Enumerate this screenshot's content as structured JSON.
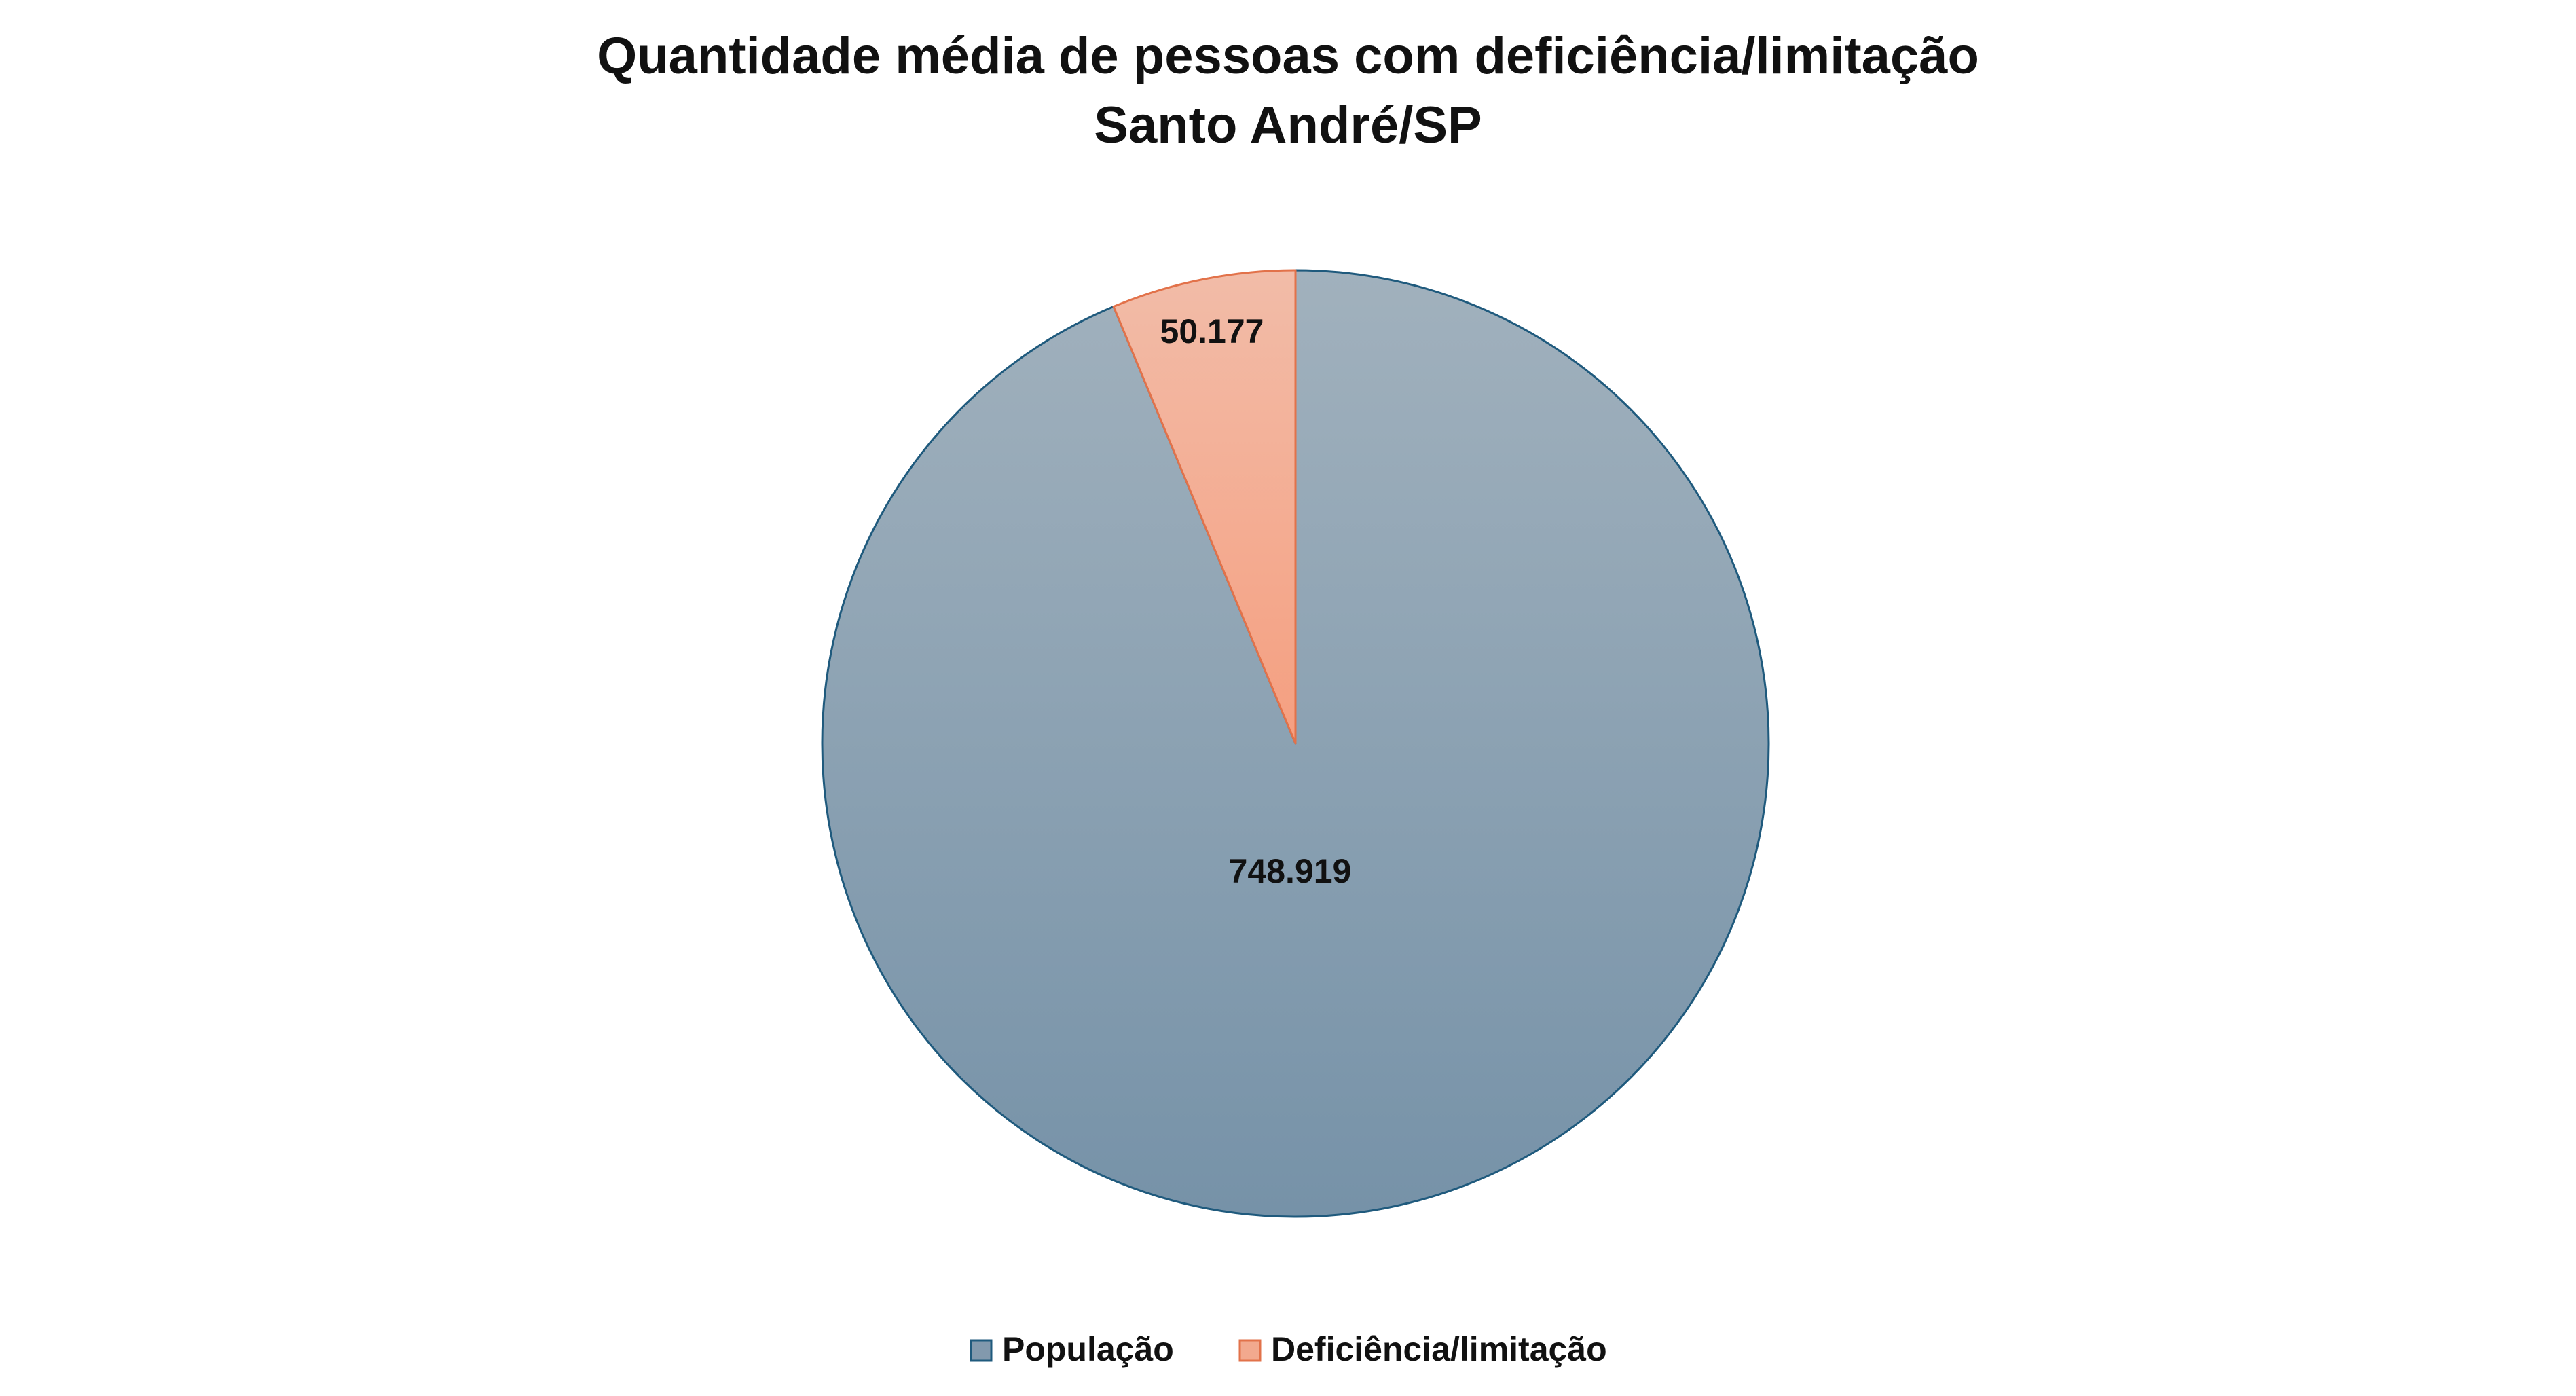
{
  "chart_data": {
    "type": "pie",
    "title": "Quantidade média de pessoas com deficiência/limitação",
    "subtitle": "Santo André/SP",
    "categories": [
      "População",
      "Deficiência/limitação"
    ],
    "values": [
      748919,
      50177
    ],
    "value_labels": [
      "748.919",
      "50.177"
    ],
    "colors": [
      "#8299ad",
      "#f2a98e"
    ],
    "legend": "bottom",
    "start_angle": "12 o'clock"
  }
}
